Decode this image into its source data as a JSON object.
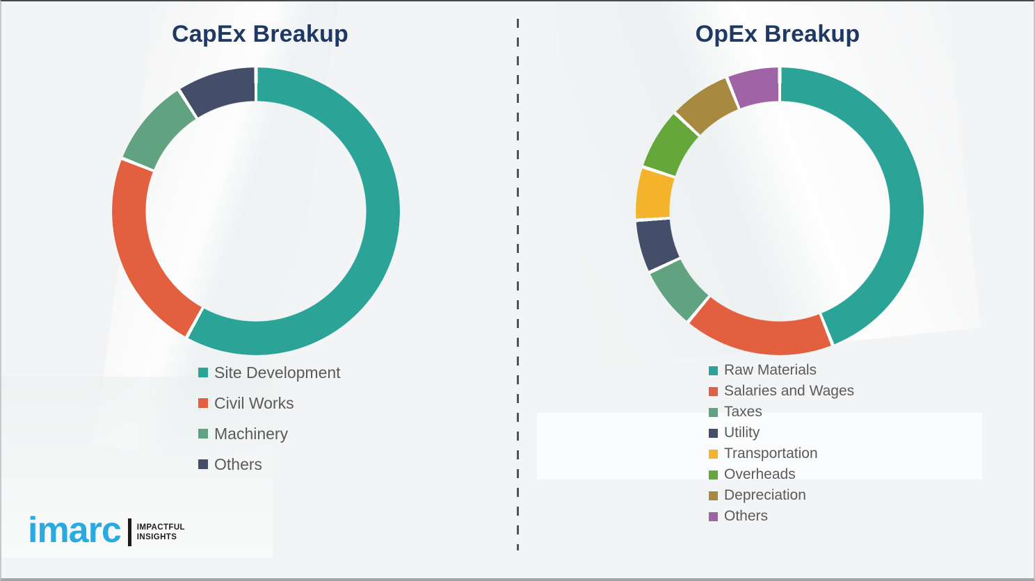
{
  "page": {
    "divider_color": "#4f5358",
    "title_color": "#1F3864",
    "legend_text_color": "#5a5a5a"
  },
  "logo": {
    "brand": "imarc",
    "tagline_line1": "IMPACTFUL",
    "tagline_line2": "INSIGHTS",
    "brand_color": "#29ABE2"
  },
  "chart_data": [
    {
      "type": "pie",
      "variant": "donut",
      "title": "CapEx Breakup",
      "categories": [
        "Site Development",
        "Civil Works",
        "Machinery",
        "Others"
      ],
      "values": [
        58,
        23,
        10,
        9
      ],
      "colors": [
        "#2BA497",
        "#E2603F",
        "#61A381",
        "#454E68"
      ],
      "unit": "percent",
      "legend_position": "bottom-left",
      "data_labels": false
    },
    {
      "type": "pie",
      "variant": "donut",
      "title": "OpEx Breakup",
      "categories": [
        "Raw Materials",
        "Salaries and Wages",
        "Taxes",
        "Utility",
        "Transportation",
        "Overheads",
        "Depreciation",
        "Others"
      ],
      "values": [
        44,
        17,
        7,
        6,
        6,
        7,
        7,
        6
      ],
      "colors": [
        "#2BA497",
        "#E2603F",
        "#61A381",
        "#454E68",
        "#F4B32C",
        "#65A73A",
        "#A78A40",
        "#9F64A6"
      ],
      "unit": "percent",
      "legend_position": "bottom-left",
      "data_labels": false
    }
  ]
}
